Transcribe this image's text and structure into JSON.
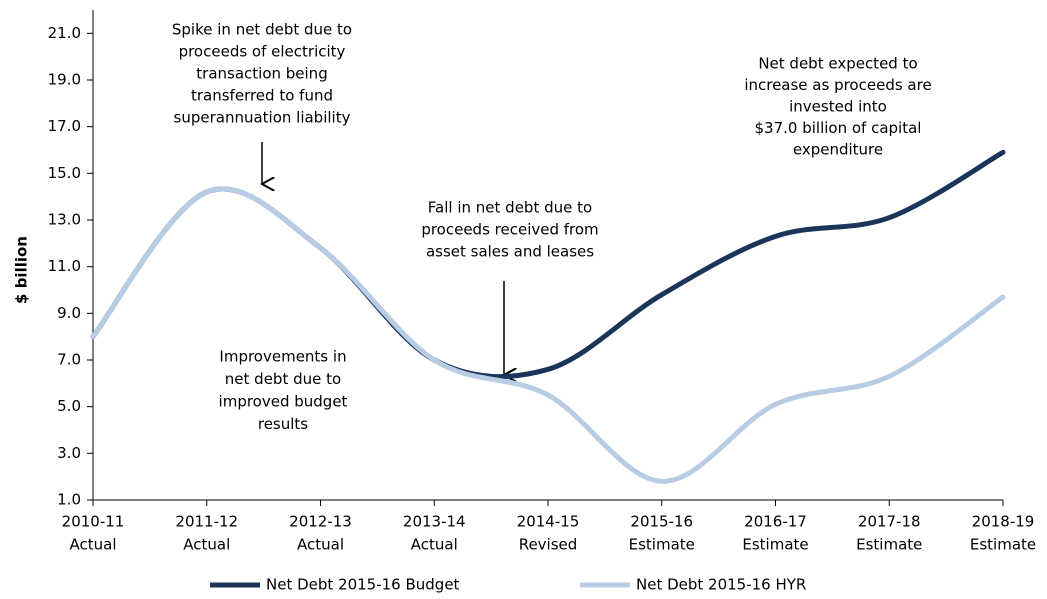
{
  "chart_data": {
    "type": "line",
    "y_label": "$ billion",
    "categories": [
      [
        "2010-11",
        "Actual"
      ],
      [
        "2011-12",
        "Actual"
      ],
      [
        "2012-13",
        "Actual"
      ],
      [
        "2013-14",
        "Actual"
      ],
      [
        "2014-15",
        "Revised"
      ],
      [
        "2015-16",
        "Estimate"
      ],
      [
        "2016-17",
        "Estimate"
      ],
      [
        "2017-18",
        "Estimate"
      ],
      [
        "2018-19",
        "Estimate"
      ]
    ],
    "series": [
      {
        "name": "Net Debt 2015-16 Budget",
        "color": "#1b355a",
        "values": [
          8.0,
          14.2,
          11.8,
          7.0,
          6.6,
          9.8,
          12.3,
          13.1,
          15.9
        ]
      },
      {
        "name": "Net Debt 2015-16 HYR",
        "color": "#b8cce4",
        "values": [
          8.0,
          14.2,
          11.8,
          7.0,
          5.5,
          1.8,
          5.1,
          6.3,
          9.7
        ]
      }
    ],
    "ylim": [
      1,
      22
    ],
    "yticks": [
      {
        "value": 1,
        "label": "1.0"
      },
      {
        "value": 3,
        "label": "3.0"
      },
      {
        "value": 5,
        "label": "5.0"
      },
      {
        "value": 7,
        "label": "7.0"
      },
      {
        "value": 9,
        "label": "9.0"
      },
      {
        "value": 11,
        "label": "11.0"
      },
      {
        "value": 13,
        "label": "13.0"
      },
      {
        "value": 15,
        "label": "15.0"
      },
      {
        "value": 17,
        "label": "17.0"
      },
      {
        "value": 19,
        "label": "19.0"
      },
      {
        "value": 21,
        "label": "21.0"
      }
    ],
    "annotations": [
      [
        "Spike in net debt due to",
        "proceeds of electricity",
        "transaction being",
        "transferred to fund",
        "superannuation liability"
      ],
      [
        "Fall in net debt due to",
        "proceeds received from",
        "asset sales and leases"
      ],
      [
        "Improvements in",
        "net debt due to",
        "improved  budget",
        "results"
      ],
      [
        "Net debt expected to",
        "increase as proceeds are",
        "invested into",
        "$37.0 billion of capital",
        "expenditure"
      ]
    ]
  }
}
